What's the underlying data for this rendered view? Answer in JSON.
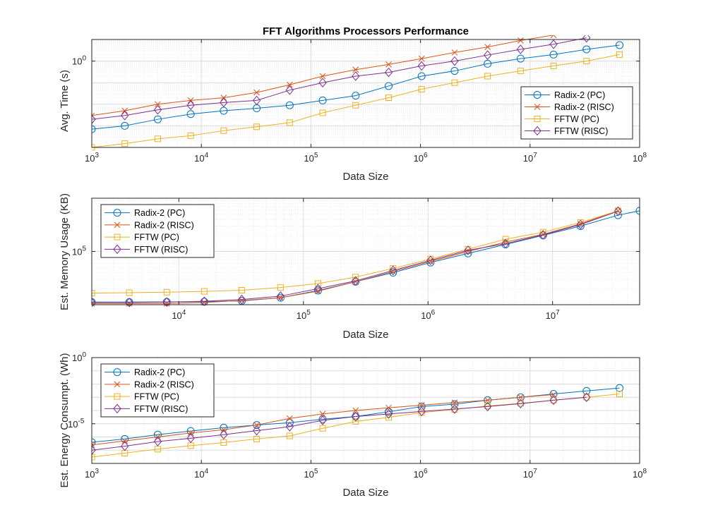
{
  "chart_data": [
    {
      "type": "line",
      "title": "FFT Algorithms Processors Performance",
      "xlabel": "Data Size",
      "ylabel": "Avg. Time (s)",
      "xscale": "log",
      "yscale": "log",
      "xlim": [
        1000,
        100000000
      ],
      "ylim": [
        0.0001,
        10
      ],
      "xticks": [
        1000,
        10000,
        100000,
        1000000,
        10000000,
        100000000
      ],
      "xtick_labels": [
        {
          "base": "10",
          "exp": "3"
        },
        {
          "base": "10",
          "exp": "4"
        },
        {
          "base": "10",
          "exp": "5"
        },
        {
          "base": "10",
          "exp": "6"
        },
        {
          "base": "10",
          "exp": "7"
        },
        {
          "base": "10",
          "exp": "8"
        }
      ],
      "yticks": [
        1
      ],
      "ytick_labels": [
        {
          "base": "10",
          "exp": "0"
        }
      ],
      "grid": true,
      "legend_position": "right",
      "series": [
        {
          "name": "Radix-2 (PC)",
          "color": "#0072BD",
          "marker": "circle",
          "x": [
            1000,
            2000,
            4000,
            8000,
            16000,
            32000,
            64000,
            128000,
            256000,
            512000,
            1024000,
            2048000,
            4096000,
            8192000,
            16384000,
            32768000,
            65536000
          ],
          "y": [
            0.0007,
            0.001,
            0.002,
            0.0035,
            0.005,
            0.0065,
            0.009,
            0.015,
            0.025,
            0.07,
            0.2,
            0.35,
            0.75,
            1.3,
            2,
            3.5,
            5.5
          ]
        },
        {
          "name": "Radix-2 (RISC)",
          "color": "#D95319",
          "marker": "x",
          "x": [
            1000,
            2000,
            4000,
            8000,
            16000,
            32000,
            64000,
            128000,
            256000,
            512000,
            1024000,
            2048000,
            4096000,
            8192000,
            16384000
          ],
          "y": [
            0.003,
            0.005,
            0.01,
            0.015,
            0.02,
            0.035,
            0.08,
            0.2,
            0.4,
            0.7,
            1.3,
            2.5,
            4.5,
            9,
            16
          ]
        },
        {
          "name": "FFTW (PC)",
          "color": "#EDB120",
          "marker": "square",
          "x": [
            1000,
            2000,
            4000,
            8000,
            16000,
            32000,
            64000,
            128000,
            256000,
            512000,
            1024000,
            2048000,
            4096000,
            8192000,
            16384000,
            32768000,
            65536000
          ],
          "y": [
            0.0001,
            0.00015,
            0.00025,
            0.00035,
            0.0006,
            0.0009,
            0.0014,
            0.004,
            0.009,
            0.02,
            0.05,
            0.1,
            0.2,
            0.35,
            0.6,
            1,
            2
          ]
        },
        {
          "name": "FFTW (RISC)",
          "color": "#7E2F8E",
          "marker": "diamond",
          "x": [
            1000,
            2000,
            4000,
            8000,
            16000,
            32000,
            64000,
            128000,
            256000,
            512000,
            1024000,
            2048000,
            4096000,
            8192000,
            16384000,
            32768000
          ],
          "y": [
            0.002,
            0.003,
            0.0055,
            0.009,
            0.012,
            0.015,
            0.045,
            0.1,
            0.2,
            0.3,
            0.6,
            1,
            1.9,
            3.5,
            6,
            12
          ]
        }
      ]
    },
    {
      "type": "line",
      "title": "",
      "xlabel": "Data Size",
      "ylabel": "Est. Memory Usage (KB)",
      "xscale": "log",
      "yscale": "log",
      "xlim": [
        2000,
        50000000
      ],
      "ylim": [
        10000,
        1000000
      ],
      "xticks": [
        10000,
        100000,
        1000000,
        10000000
      ],
      "xtick_labels": [
        {
          "base": "10",
          "exp": "4"
        },
        {
          "base": "10",
          "exp": "5"
        },
        {
          "base": "10",
          "exp": "6"
        },
        {
          "base": "10",
          "exp": "7"
        }
      ],
      "yticks": [
        100000
      ],
      "ytick_labels": [
        {
          "base": "10",
          "exp": "5"
        }
      ],
      "grid": true,
      "legend_position": "top-left",
      "series": [
        {
          "name": "Radix-2 (PC)",
          "color": "#0072BD",
          "marker": "circle",
          "x": [
            2000,
            4000,
            8000,
            16000,
            32000,
            65536,
            131072,
            262144,
            524288,
            1048576,
            2097152,
            4194304,
            8388608,
            16777216,
            33554432,
            50000000
          ],
          "y": [
            11200,
            11200,
            11300,
            11400,
            11800,
            13500,
            18500,
            27000,
            40000,
            62000,
            92000,
            135000,
            200000,
            300000,
            480000,
            580000
          ]
        },
        {
          "name": "Radix-2 (RISC)",
          "color": "#D95319",
          "marker": "x",
          "x": [
            2000,
            4000,
            8000,
            16000,
            32000,
            65536,
            131072,
            262144,
            524288,
            1048576,
            2097152,
            4194304,
            8388608,
            16777216,
            33554432
          ],
          "y": [
            10500,
            10500,
            10500,
            11000,
            12000,
            13500,
            18000,
            27000,
            42000,
            65000,
            100000,
            150000,
            210000,
            330000,
            580000
          ]
        },
        {
          "name": "FFTW (PC)",
          "color": "#EDB120",
          "marker": "square",
          "x": [
            2000,
            4000,
            8000,
            16000,
            32000,
            65536,
            131072,
            262144,
            524288,
            1048576,
            2097152,
            4194304,
            8388608,
            16777216,
            33554432
          ],
          "y": [
            16500,
            16800,
            17200,
            17800,
            18700,
            21000,
            25000,
            33000,
            48000,
            72000,
            110000,
            170000,
            230000,
            350000,
            580000
          ]
        },
        {
          "name": "FFTW (RISC)",
          "color": "#7E2F8E",
          "marker": "diamond",
          "x": [
            2000,
            4000,
            8000,
            16000,
            32000,
            65536,
            131072,
            262144,
            524288,
            1048576,
            2097152,
            4194304,
            8388608,
            16777216,
            33554432
          ],
          "y": [
            11000,
            11000,
            11200,
            11600,
            12500,
            14500,
            20000,
            28000,
            44000,
            68000,
            105000,
            140000,
            205000,
            320000,
            570000
          ]
        }
      ]
    },
    {
      "type": "line",
      "title": "",
      "xlabel": "Data Size",
      "ylabel": "Est. Energy Consumpt. (Wh)",
      "xscale": "log",
      "yscale": "log",
      "xlim": [
        1000,
        100000000
      ],
      "ylim": [
        1e-08,
        1
      ],
      "xticks": [
        1000,
        10000,
        100000,
        1000000,
        10000000,
        100000000
      ],
      "xtick_labels": [
        {
          "base": "10",
          "exp": "3"
        },
        {
          "base": "10",
          "exp": "4"
        },
        {
          "base": "10",
          "exp": "5"
        },
        {
          "base": "10",
          "exp": "6"
        },
        {
          "base": "10",
          "exp": "7"
        },
        {
          "base": "10",
          "exp": "8"
        }
      ],
      "yticks": [
        1e-05,
        1
      ],
      "ytick_labels": [
        {
          "base": "10",
          "exp": "-5"
        },
        {
          "base": "10",
          "exp": "0"
        }
      ],
      "grid": true,
      "legend_position": "top-left",
      "series": [
        {
          "name": "Radix-2 (PC)",
          "color": "#0072BD",
          "marker": "circle",
          "x": [
            1000,
            2000,
            4000,
            8000,
            16000,
            32000,
            64000,
            128000,
            256000,
            512000,
            1024000,
            2048000,
            4096000,
            8192000,
            16384000,
            32768000,
            65536000
          ],
          "y": [
            4e-07,
            7e-07,
            1.5e-06,
            2.8e-06,
            5e-06,
            8e-06,
            1.2e-05,
            2.2e-05,
            3.5e-05,
            8e-05,
            0.0002,
            0.0003,
            0.0006,
            0.001,
            0.0018,
            0.003,
            0.005
          ]
        },
        {
          "name": "Radix-2 (RISC)",
          "color": "#D95319",
          "marker": "x",
          "x": [
            1000,
            2000,
            4000,
            8000,
            16000,
            32000,
            64000,
            128000,
            256000,
            512000,
            1024000,
            2048000,
            4096000,
            8192000,
            16384000
          ],
          "y": [
            2.5e-07,
            5e-07,
            1e-06,
            2e-06,
            3.5e-06,
            8e-06,
            2.5e-05,
            5.5e-05,
            0.0001,
            0.00016,
            0.00025,
            0.0004,
            0.0006,
            0.001,
            0.0016
          ]
        },
        {
          "name": "FFTW (PC)",
          "color": "#EDB120",
          "marker": "square",
          "x": [
            1000,
            2000,
            4000,
            8000,
            16000,
            32000,
            64000,
            128000,
            256000,
            512000,
            1024000,
            2048000,
            4096000,
            8192000,
            16384000,
            32768000,
            65536000
          ],
          "y": [
            3e-08,
            6e-08,
            1.2e-07,
            2.2e-07,
            3.8e-07,
            7e-07,
            1.2e-06,
            4.5e-06,
            1.5e-05,
            3e-05,
            7e-05,
            0.00012,
            0.00022,
            0.00035,
            0.0006,
            0.001,
            0.0018
          ]
        },
        {
          "name": "FFTW (RISC)",
          "color": "#7E2F8E",
          "marker": "diamond",
          "x": [
            1000,
            2000,
            4000,
            8000,
            16000,
            32000,
            64000,
            128000,
            256000,
            512000,
            1024000,
            2048000,
            4096000,
            8192000,
            16384000,
            32768000
          ],
          "y": [
            1e-07,
            2e-07,
            4.5e-07,
            8e-07,
            1.5e-06,
            3e-06,
            6e-06,
            1.8e-05,
            3.5e-05,
            5.5e-05,
            8.5e-05,
            0.00013,
            0.0002,
            0.00033,
            0.0006,
            0.001
          ]
        }
      ]
    }
  ]
}
